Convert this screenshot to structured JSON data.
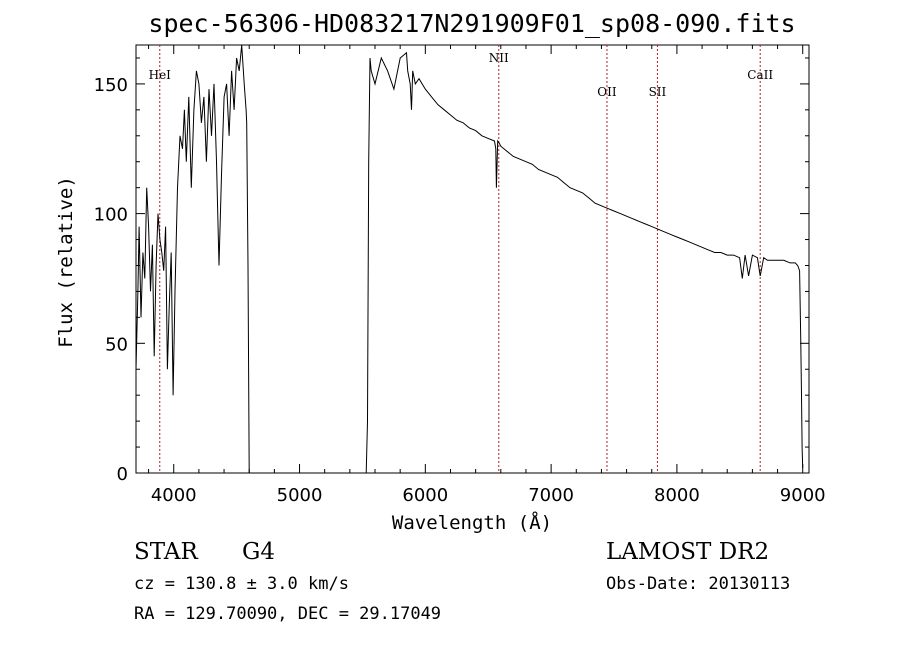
{
  "chart_data": {
    "type": "line",
    "title": "spec-56306-HD083217N291909F01_sp08-090.fits",
    "xlabel": "Wavelength (Å)",
    "ylabel": "Flux (relative)",
    "xlim": [
      3700,
      9050
    ],
    "ylim": [
      0,
      165
    ],
    "xticks": [
      "4000",
      "5000",
      "6000",
      "7000",
      "8000",
      "9000"
    ],
    "yticks": [
      "0",
      "50",
      "100",
      "150"
    ],
    "lines": [
      {
        "label": "HeI",
        "x": 3889
      },
      {
        "label": "NII",
        "x": 6584
      },
      {
        "label": "OII",
        "x": 7444
      },
      {
        "label": "SII",
        "x": 7845
      },
      {
        "label": "CaII",
        "x": 8662
      }
    ],
    "series": [
      {
        "x": [
          3700,
          3715,
          3725,
          3740,
          3755,
          3770,
          3785,
          3800,
          3815,
          3830,
          3845,
          3860,
          3875,
          3890,
          3905,
          3920,
          3935,
          3950,
          3965,
          3980,
          3995,
          4010,
          4030,
          4050,
          4070,
          4085,
          4100,
          4120,
          4140,
          4160,
          4180,
          4200,
          4220,
          4240,
          4260,
          4280,
          4300,
          4320,
          4340,
          4360,
          4380,
          4400,
          4420,
          4440,
          4460,
          4480,
          4500,
          4520,
          4540,
          4560,
          4575,
          4580,
          4590,
          4600,
          5530,
          5540,
          5550,
          5560,
          5570,
          5600,
          5650,
          5700,
          5750,
          5800,
          5850,
          5860,
          5880,
          5890,
          5900,
          5920,
          5950,
          6000,
          6050,
          6100,
          6150,
          6200,
          6250,
          6300,
          6350,
          6400,
          6450,
          6500,
          6550,
          6560,
          6565,
          6575,
          6590,
          6600,
          6650,
          6700,
          6750,
          6800,
          6850,
          6900,
          6950,
          7000,
          7050,
          7100,
          7150,
          7200,
          7250,
          7300,
          7350,
          7400,
          7450,
          7500,
          7550,
          7600,
          7650,
          7700,
          7750,
          7800,
          7850,
          7900,
          7950,
          8000,
          8050,
          8100,
          8150,
          8200,
          8250,
          8300,
          8350,
          8400,
          8450,
          8498,
          8520,
          8542,
          8570,
          8600,
          8640,
          8662,
          8690,
          8720,
          8750,
          8800,
          8850,
          8900,
          8940,
          8960,
          8975,
          8985,
          8990,
          8995,
          9000
        ],
        "y": [
          40,
          70,
          95,
          60,
          85,
          75,
          110,
          95,
          70,
          88,
          45,
          80,
          100,
          90,
          85,
          78,
          95,
          40,
          65,
          85,
          30,
          70,
          110,
          130,
          125,
          140,
          120,
          145,
          110,
          140,
          155,
          150,
          135,
          145,
          120,
          148,
          130,
          150,
          120,
          80,
          115,
          145,
          150,
          130,
          155,
          140,
          160,
          155,
          165,
          150,
          140,
          135,
          80,
          0,
          0,
          20,
          120,
          160,
          155,
          150,
          160,
          155,
          148,
          160,
          162,
          155,
          150,
          140,
          155,
          150,
          152,
          148,
          145,
          142,
          140,
          138,
          136,
          135,
          133,
          132,
          130,
          129,
          128,
          125,
          110,
          128,
          127,
          126,
          124,
          122,
          121,
          120,
          119,
          117,
          116,
          115,
          114,
          112,
          110,
          109,
          108,
          106,
          104,
          103,
          102,
          101,
          100,
          99,
          98,
          97,
          96,
          95,
          94,
          93,
          92,
          91,
          90,
          89,
          88,
          87,
          86,
          85,
          85,
          84,
          84,
          83,
          75,
          84,
          76,
          84,
          83,
          76,
          83,
          82,
          82,
          82,
          82,
          81,
          81,
          80,
          78,
          50,
          30,
          10,
          2
        ]
      }
    ]
  },
  "info": {
    "class_label": "STAR",
    "subclass": "G4",
    "cz": "cz = 130.8 ± 3.0 km/s",
    "radec": "RA = 129.70090, DEC =  29.17049",
    "survey": "LAMOST DR2",
    "obs_date": "Obs-Date: 20130113"
  }
}
